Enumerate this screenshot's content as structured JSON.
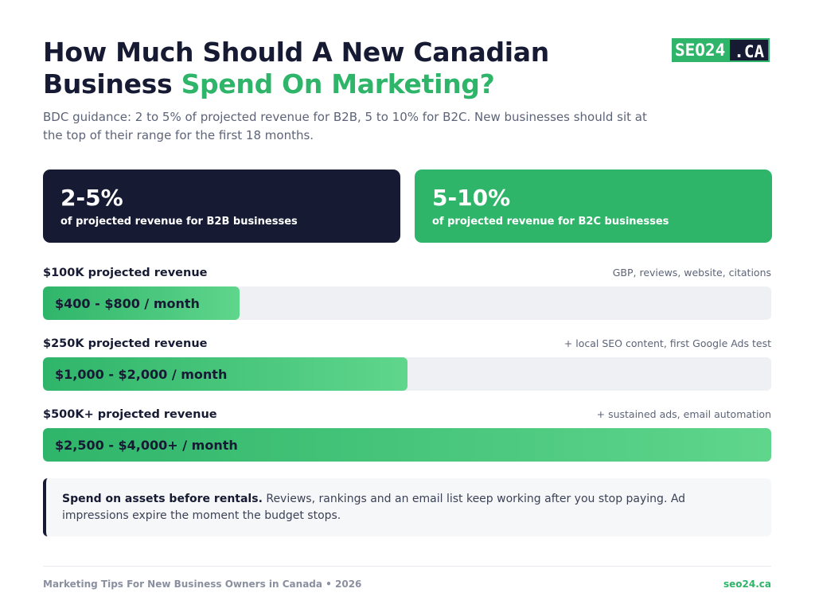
{
  "title": {
    "part1": "How Much Should A New Canadian Business ",
    "accent": "Spend On Marketing?"
  },
  "logo": {
    "left": "SEO24",
    "right": ".CA"
  },
  "subtitle": "BDC guidance: 2 to 5% of projected revenue for B2B, 5 to 10% for B2C. New businesses should sit at the top of their range for the first 18 months.",
  "stats": [
    {
      "value": "2-5%",
      "caption": "of projected revenue for B2B businesses"
    },
    {
      "value": "5-10%",
      "caption": "of projected revenue for B2C businesses"
    }
  ],
  "tiers": [
    {
      "label": "$100K projected revenue",
      "note": "GBP, reviews, website, citations",
      "budget": "$400 - $800 / month",
      "fill_fraction": 0.27
    },
    {
      "label": "$250K projected revenue",
      "note": "+ local SEO content, first Google Ads test",
      "budget": "$1,000 - $2,000 / month",
      "fill_fraction": 0.5
    },
    {
      "label": "$500K+ projected revenue",
      "note": "+ sustained ads, email automation",
      "budget": "$2,500 - $4,000+ / month",
      "fill_fraction": 1.0
    }
  ],
  "callout": {
    "bold": "Spend on assets before rentals.",
    "text": " Reviews, rankings and an email list keep working after you stop paying. Ad impressions expire the moment the budget stops."
  },
  "footer": {
    "left": "Marketing Tips For New Business Owners in Canada • 2026",
    "right": "seo24.ca"
  },
  "colors": {
    "navy": "#161b33",
    "green": "#2fb56a",
    "track": "#eef0f4"
  }
}
